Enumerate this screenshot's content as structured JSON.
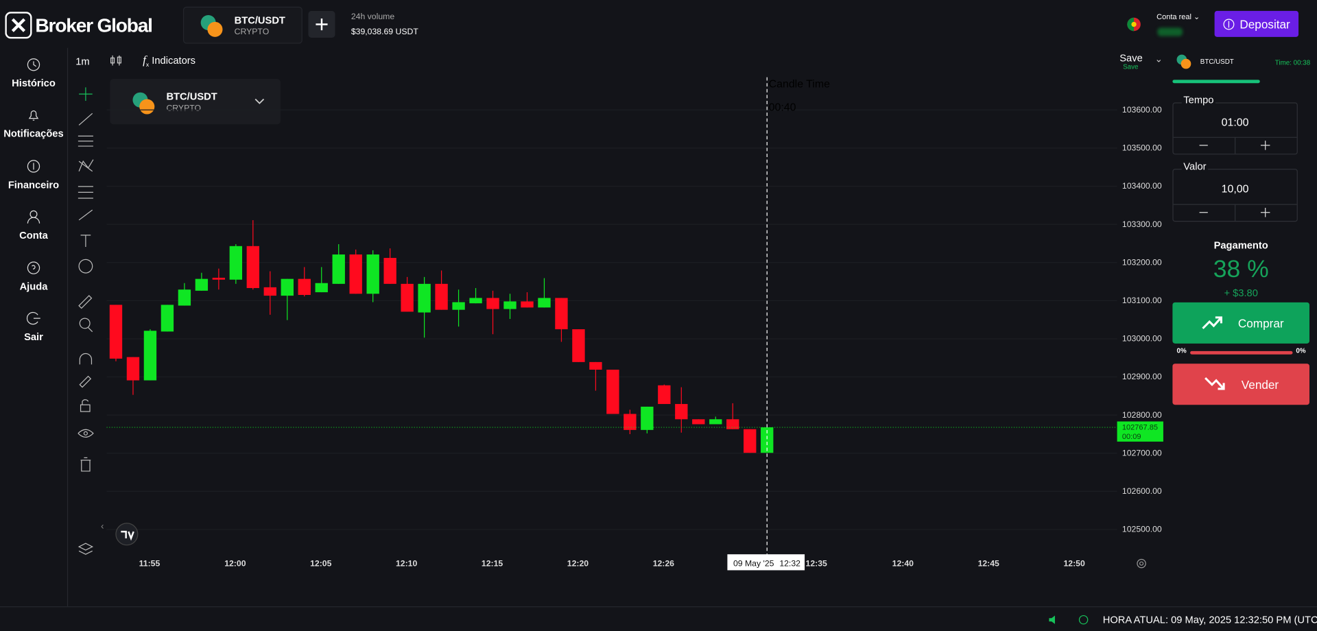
{
  "header": {
    "logo": "Broker Global",
    "symbol": "BTC/USDT",
    "market": "CRYPTO",
    "volume_label": "24h volume",
    "volume": "$39,038.69 USDT",
    "account": "Conta real",
    "deposit": "Depositar"
  },
  "sidebar": [
    "Histórico",
    "Notificações",
    "Financeiro",
    "Conta",
    "Ajuda",
    "Sair"
  ],
  "toolbar": {
    "interval": "1m",
    "indicators": "Indicators",
    "save": "Save",
    "save_sub": "Save"
  },
  "chart_data": {
    "type": "candlestick",
    "symbol": "BTC/USDT",
    "market": "CRYPTO",
    "candle_time_label": "Candle Time",
    "candle_time": "00:40",
    "xticks": [
      "11:55",
      "12:00",
      "12:05",
      "12:10",
      "12:15",
      "12:20",
      "12:26",
      "12:35",
      "12:40",
      "12:45",
      "12:50"
    ],
    "candles": [
      [
        103089,
        103089,
        102941,
        102948
      ],
      [
        102952,
        102952,
        102853,
        102891
      ],
      [
        102891,
        103025,
        102891,
        103021
      ],
      [
        103019,
        103089,
        103019,
        103089
      ],
      [
        103087,
        103146,
        103087,
        103129
      ],
      [
        103126,
        103173,
        103126,
        103157
      ],
      [
        103160,
        103184,
        103129,
        103155
      ],
      [
        103155,
        103248,
        103144,
        103243
      ],
      [
        103243,
        103311,
        103129,
        103133
      ],
      [
        103135,
        103177,
        103063,
        103113
      ],
      [
        103113,
        103157,
        103049,
        103157
      ],
      [
        103157,
        103188,
        103111,
        103115
      ],
      [
        103122,
        103188,
        103122,
        103146
      ],
      [
        103144,
        103248,
        103144,
        103221
      ],
      [
        103221,
        103234,
        103118,
        103118
      ],
      [
        103118,
        103232,
        103096,
        103221
      ],
      [
        103212,
        103237,
        103144,
        103144
      ],
      [
        103144,
        103162,
        103071,
        103071
      ],
      [
        103069,
        103162,
        103003,
        103144
      ],
      [
        103144,
        103179,
        103076,
        103076
      ],
      [
        103076,
        103129,
        103032,
        103096
      ],
      [
        103093,
        103133,
        103093,
        103107
      ],
      [
        103107,
        103126,
        103012,
        103078
      ],
      [
        103078,
        103118,
        103052,
        103098
      ],
      [
        103098,
        103122,
        103082,
        103082
      ],
      [
        103082,
        103159,
        103082,
        103107
      ],
      [
        103107,
        103107,
        102992,
        103025
      ],
      [
        103025,
        103025,
        102939,
        102939
      ],
      [
        102939,
        102939,
        102864,
        102919
      ],
      [
        102919,
        102919,
        102803,
        102803
      ],
      [
        102803,
        102814,
        102750,
        102761
      ],
      [
        102761,
        102822,
        102752,
        102822
      ],
      [
        102878,
        102880,
        102829,
        102829
      ],
      [
        102829,
        102873,
        102754,
        102789
      ],
      [
        102789,
        102789,
        102776,
        102776
      ],
      [
        102776,
        102796,
        102776,
        102789
      ],
      [
        102789,
        102831,
        102763,
        102763
      ],
      [
        102763,
        102763,
        102701,
        102701
      ],
      [
        102701,
        102768,
        102701,
        102767.85
      ]
    ],
    "ylim": [
      102446,
      103690
    ],
    "yticks": [
      {
        "value": 103600,
        "label": "103600.00"
      },
      {
        "value": 103500,
        "label": "103500.00"
      },
      {
        "value": 103400,
        "label": "103400.00"
      },
      {
        "value": 103300,
        "label": "103300.00"
      },
      {
        "value": 103200,
        "label": "103200.00"
      },
      {
        "value": 103100,
        "label": "103100.00"
      },
      {
        "value": 103000,
        "label": "103000.00"
      },
      {
        "value": 102900,
        "label": "102900.00"
      },
      {
        "value": 102800,
        "label": "102800.00"
      },
      {
        "value": 102700,
        "label": "102700.00"
      },
      {
        "value": 102600,
        "label": "102600.00"
      },
      {
        "value": 102500,
        "label": "102500.00"
      }
    ],
    "last_price": 102767.85,
    "last_countdown": "00:09",
    "crosshair_date": "09 May '25",
    "crosshair_time": "12:32",
    "up_color": "#0fe623",
    "down_color": "#ff0a1e",
    "grid": true
  },
  "panel": {
    "symbol": "BTC/USDT",
    "timer": "Time: 00:38",
    "time_label": "Tempo",
    "time_value": "01:00",
    "amount_label": "Valor",
    "amount_value": "10,00",
    "payout_label": "Pagamento",
    "payout": "38 %",
    "profit": "+ $3.80",
    "buy": "Comprar",
    "buy_share": "0%",
    "sell_share": "0%",
    "sell": "Vender"
  },
  "footer": {
    "clock": "HORA ATUAL: 09 May, 2025 12:32:50 PM (UTC-3)"
  }
}
